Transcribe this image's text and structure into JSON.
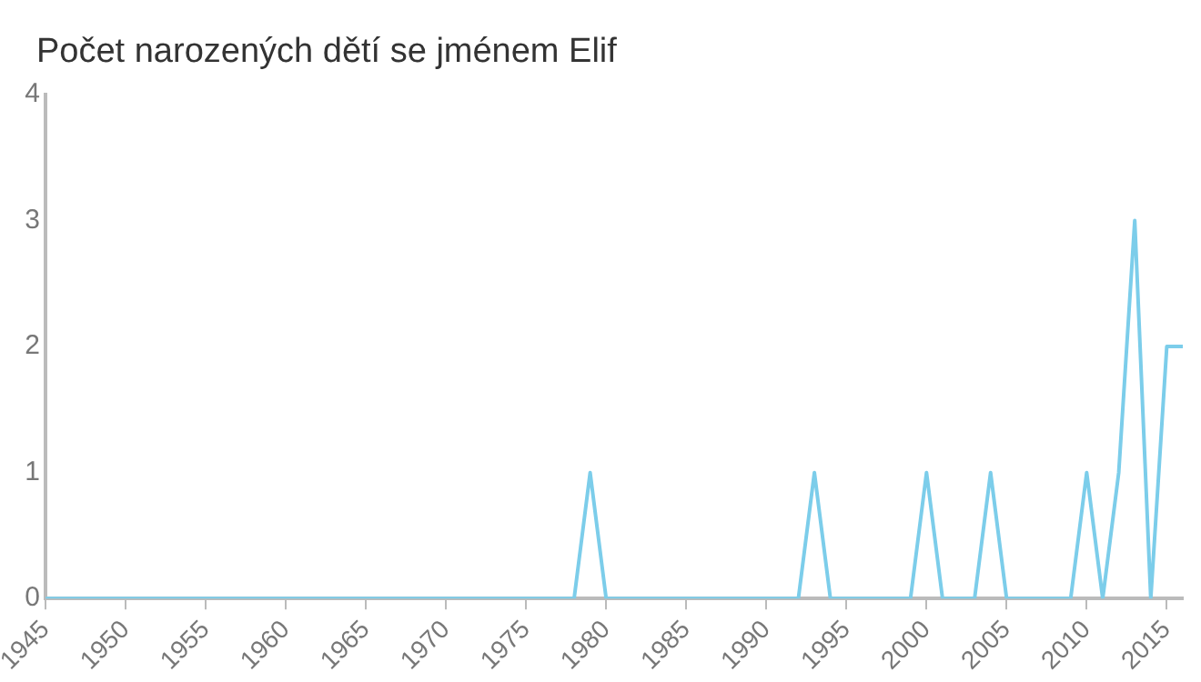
{
  "chart_data": {
    "type": "line",
    "title": "Počet narozených dětí se jménem Elif",
    "x": [
      1945,
      1946,
      1947,
      1948,
      1949,
      1950,
      1951,
      1952,
      1953,
      1954,
      1955,
      1956,
      1957,
      1958,
      1959,
      1960,
      1961,
      1962,
      1963,
      1964,
      1965,
      1966,
      1967,
      1968,
      1969,
      1970,
      1971,
      1972,
      1973,
      1974,
      1975,
      1976,
      1977,
      1978,
      1979,
      1980,
      1981,
      1982,
      1983,
      1984,
      1985,
      1986,
      1987,
      1988,
      1989,
      1990,
      1991,
      1992,
      1993,
      1994,
      1995,
      1996,
      1997,
      1998,
      1999,
      2000,
      2001,
      2002,
      2003,
      2004,
      2005,
      2006,
      2007,
      2008,
      2009,
      2010,
      2011,
      2012,
      2013,
      2014,
      2015,
      2016
    ],
    "series": [
      {
        "color": "#7ccdea",
        "values": [
          0,
          0,
          0,
          0,
          0,
          0,
          0,
          0,
          0,
          0,
          0,
          0,
          0,
          0,
          0,
          0,
          0,
          0,
          0,
          0,
          0,
          0,
          0,
          0,
          0,
          0,
          0,
          0,
          0,
          0,
          0,
          0,
          0,
          0,
          1,
          0,
          0,
          0,
          0,
          0,
          0,
          0,
          0,
          0,
          0,
          0,
          0,
          0,
          1,
          0,
          0,
          0,
          0,
          0,
          0,
          1,
          0,
          0,
          0,
          1,
          0,
          0,
          0,
          0,
          0,
          1,
          0,
          1,
          3,
          0,
          2,
          2
        ]
      }
    ],
    "xlim": [
      1945,
      2016
    ],
    "xticks": [
      1945,
      1950,
      1955,
      1960,
      1965,
      1970,
      1975,
      1980,
      1985,
      1990,
      1995,
      2000,
      2005,
      2010,
      2015
    ],
    "ylim": [
      0,
      4
    ],
    "yticks": [
      0,
      1,
      2,
      3,
      4
    ],
    "grid": false,
    "legend": false,
    "marker": "none",
    "line_style": "solid"
  }
}
